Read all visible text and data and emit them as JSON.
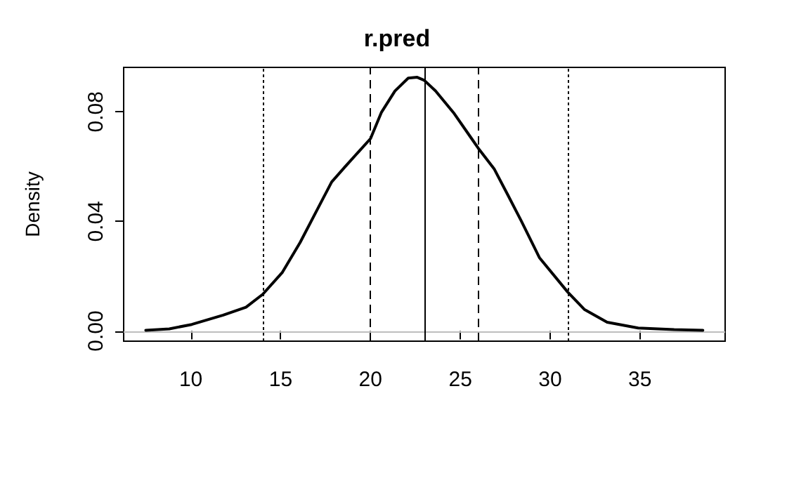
{
  "chart_data": {
    "type": "line",
    "title": "r.pred",
    "ylabel": "Density",
    "color": "#000000",
    "marker": "none",
    "line_style": "solid",
    "grid": false,
    "x": [
      7.49,
      8.8,
      10.05,
      11.8,
      13.07,
      14.0,
      15.08,
      16.08,
      17.09,
      17.84,
      18.59,
      19.35,
      20.0,
      20.6,
      21.36,
      22.1,
      22.6,
      22.99,
      23.62,
      24.62,
      25.63,
      26.0,
      26.88,
      27.64,
      28.39,
      29.4,
      30.98,
      31.9,
      33.17,
      34.9,
      36.9,
      38.5
    ],
    "values": [
      0.0003,
      0.0008,
      0.0024,
      0.0058,
      0.0087,
      0.0134,
      0.0213,
      0.0323,
      0.045,
      0.0544,
      0.06,
      0.0655,
      0.0702,
      0.0797,
      0.0876,
      0.0923,
      0.0926,
      0.0915,
      0.0876,
      0.0797,
      0.0702,
      0.0667,
      0.0592,
      0.0497,
      0.0402,
      0.0268,
      0.0142,
      0.0079,
      0.0032,
      0.0011,
      0.0005,
      0.0003
    ],
    "xlim": [
      6.26,
      39.74
    ],
    "xticks": [
      10,
      15,
      20,
      25,
      30,
      35
    ],
    "ylim": [
      -0.0037,
      0.0962
    ],
    "yticks": [
      {
        "value": 0,
        "label": "0.00"
      },
      {
        "value": 0.04,
        "label": "0.04"
      },
      {
        "value": 0.08,
        "label": "0.08"
      }
    ],
    "ref_lines": [
      {
        "axis": "y",
        "value": 0,
        "color": "#bebebe",
        "line_style": "solid"
      },
      {
        "axis": "x",
        "value": 14,
        "color": "#000000",
        "line_style": "dotted"
      },
      {
        "axis": "x",
        "value": 20,
        "color": "#000000",
        "line_style": "dashed"
      },
      {
        "axis": "x",
        "value": 23,
        "color": "#000000",
        "line_style": "solid"
      },
      {
        "axis": "x",
        "value": 26,
        "color": "#000000",
        "line_style": "dashed"
      },
      {
        "axis": "x",
        "value": 31,
        "color": "#000000",
        "line_style": "dotted"
      }
    ]
  }
}
